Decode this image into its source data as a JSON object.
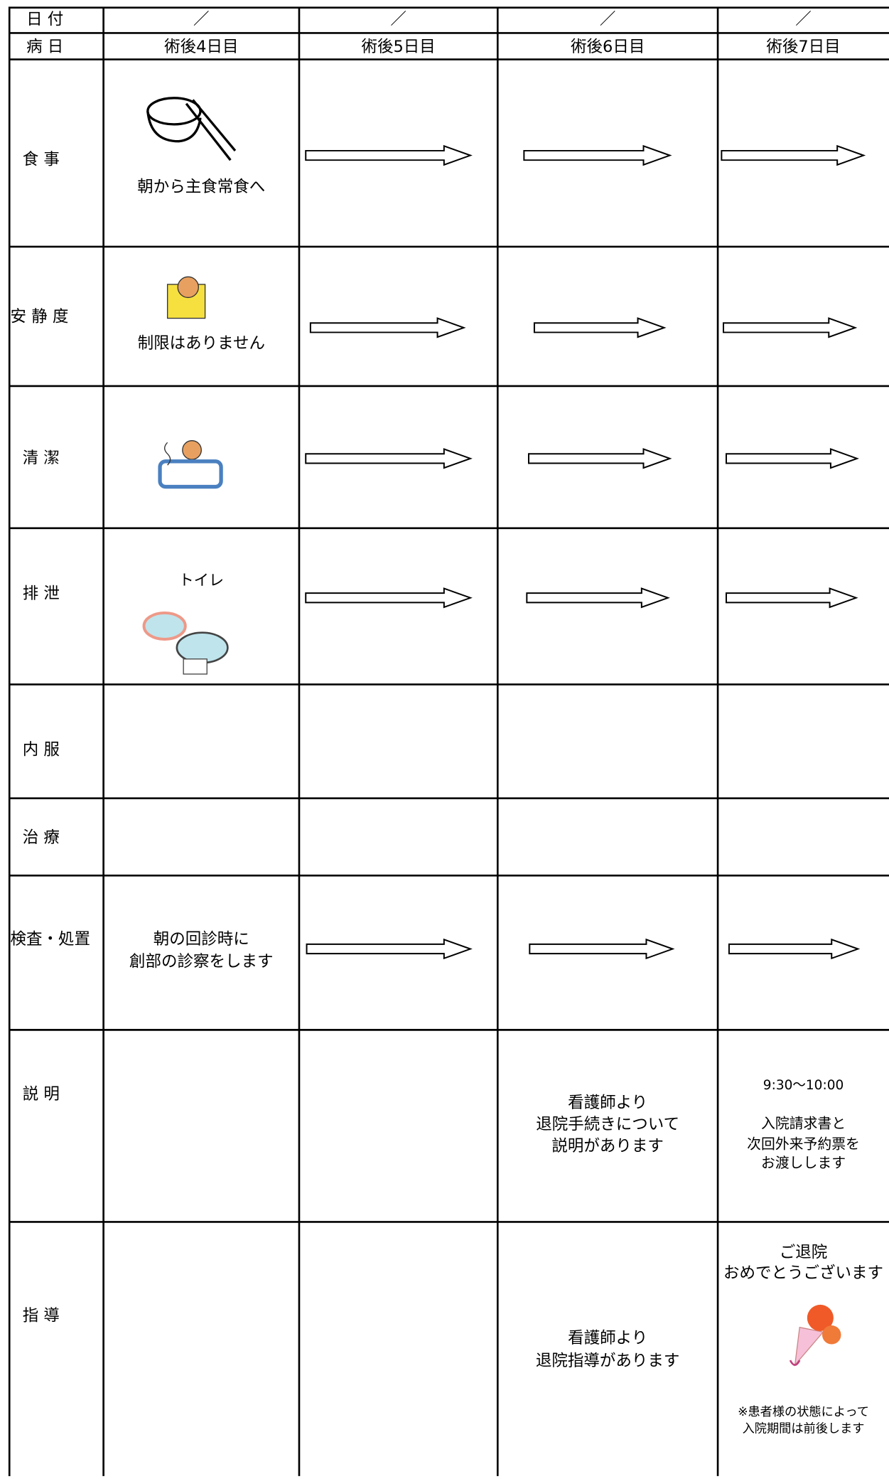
{
  "header": {
    "date_label": "日 付",
    "dates": [
      "／",
      "／",
      "／",
      "／"
    ],
    "day_label": "病 日",
    "days": [
      "術後4日目",
      "術後5日目",
      "術後6日目",
      "術後7日目"
    ]
  },
  "rows": [
    {
      "label": "食 事",
      "cells": [
        [
          "朝から主食常食へ"
        ],
        null,
        null,
        null
      ]
    },
    {
      "label": "安 静 度",
      "cells": [
        [
          "制限はありません"
        ],
        null,
        null,
        null
      ]
    },
    {
      "label": "清 潔",
      "cells": [
        null,
        null,
        null,
        null
      ]
    },
    {
      "label": "排 泄",
      "cells": [
        [
          "トイレ"
        ],
        null,
        null,
        null
      ]
    },
    {
      "label": "内 服",
      "cells": [
        null,
        null,
        null,
        null
      ]
    },
    {
      "label": "治 療",
      "cells": [
        null,
        null,
        null,
        null
      ]
    },
    {
      "label": "検査・処置",
      "cells": [
        [
          "朝の回診時に",
          "創部の診察をします"
        ],
        null,
        null,
        null
      ]
    },
    {
      "label": "説 明",
      "cells": [
        null,
        null,
        [
          "看護師より",
          "退院手続きについて",
          "説明があります"
        ],
        [
          "9:30〜10:00",
          "入院請求書と",
          "次回外来予約票を",
          "お渡しします"
        ]
      ]
    },
    {
      "label": "指 導",
      "cells": [
        null,
        null,
        [
          "看護師より",
          "退院指導があります"
        ],
        [
          "ご退院",
          "おめでとうございます",
          "※患者様の状態によって",
          "入院期間は前後します"
        ]
      ]
    }
  ]
}
